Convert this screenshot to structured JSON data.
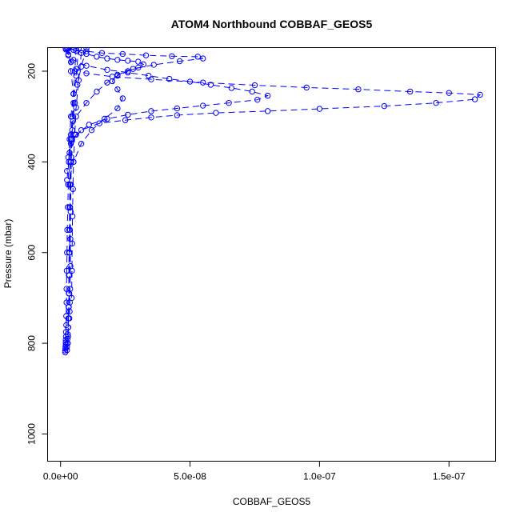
{
  "chart_data": {
    "type": "scatter",
    "title": "ATOM4 Northbound COBBAF_GEOS5",
    "xlabel": "COBBAF_GEOS5",
    "ylabel": "Pressure (mbar)",
    "xlim": [
      -5e-09,
      1.68e-07
    ],
    "ylim": [
      1060,
      148
    ],
    "y_reversed": true,
    "x_ticks": [
      0,
      5e-08,
      1e-07,
      1.5e-07
    ],
    "x_tick_labels": [
      "0.0e+00",
      "5.0e-08",
      "1.0e-07",
      "1.5e-07"
    ],
    "y_ticks": [
      200,
      400,
      600,
      800,
      1000
    ],
    "y_tick_labels": [
      "200",
      "400",
      "600",
      "800",
      "1000"
    ],
    "marker": "open-circle",
    "line": "dashed",
    "color": "#0000ff",
    "series": [
      {
        "x": [
          2e-09,
          3e-09,
          4e-09,
          6e-09,
          1e-08,
          2e-08,
          3.5e-08,
          5.5e-08,
          7.5e-08,
          9.5e-08,
          1.15e-07,
          1.35e-07,
          1.5e-07,
          1.62e-07,
          1.6e-07,
          1.45e-07,
          1.25e-07,
          1e-07,
          8e-08,
          6e-08,
          4.5e-08,
          3.5e-08,
          2.5e-08,
          1.5e-08,
          8e-09,
          4e-09,
          2.5e-09
        ],
        "y": [
          150,
          165,
          180,
          195,
          205,
          212,
          218,
          225,
          231,
          236,
          240,
          245,
          248,
          252,
          262,
          270,
          277,
          283,
          288,
          292,
          297,
          302,
          308,
          315,
          330,
          360,
          420
        ]
      },
      {
        "x": [
          2e-09,
          3e-09,
          5e-09,
          1e-08,
          1.8e-08,
          2.6e-08,
          3.4e-08,
          4.2e-08,
          5e-08,
          5.8e-08,
          6.6e-08,
          7.4e-08,
          8e-08,
          7.6e-08,
          6.5e-08,
          5.5e-08,
          4.5e-08,
          3.5e-08,
          2.6e-08,
          1.8e-08,
          1.1e-08,
          6e-09,
          3.5e-09,
          2.5e-09
        ],
        "y": [
          152,
          163,
          175,
          188,
          197,
          203,
          210,
          217,
          223,
          230,
          237,
          245,
          254,
          263,
          270,
          276,
          282,
          288,
          296,
          305,
          318,
          340,
          380,
          440
        ]
      },
      {
        "x": [
          2.5e-09,
          5e-09,
          1e-08,
          1.6e-08,
          2.4e-08,
          3.3e-08,
          4.3e-08,
          5.3e-08,
          5.5e-08,
          4.6e-08,
          3.6e-08,
          2.8e-08,
          2.2e-08,
          2e-08,
          2.2e-08,
          2.4e-08,
          2.2e-08,
          1.7e-08,
          1.2e-08,
          8e-09,
          5e-09,
          3e-09
        ],
        "y": [
          150,
          153,
          156,
          160,
          162,
          165,
          167,
          168,
          172,
          178,
          186,
          195,
          208,
          222,
          240,
          260,
          282,
          305,
          330,
          360,
          400,
          450
        ]
      },
      {
        "x": [
          3e-09,
          6e-09,
          1e-08,
          1.4e-08,
          1.8e-08,
          2.2e-08,
          2.6e-08,
          3e-08,
          3.2e-08,
          3e-08,
          2.6e-08,
          2.2e-08,
          1.8e-08,
          1.4e-08,
          1e-08,
          6e-09,
          4e-09,
          3e-09
        ],
        "y": [
          148,
          155,
          162,
          168,
          172,
          175,
          177,
          179,
          185,
          192,
          200,
          210,
          225,
          245,
          270,
          300,
          340,
          390
        ]
      },
      {
        "x": [
          3e-09,
          4e-09,
          5e-09,
          4e-09,
          3.5e-09,
          3.2e-09,
          3e-09,
          2.8e-09,
          2.6e-09,
          2.5e-09,
          2.4e-09,
          2.3e-09,
          2.3e-09,
          2.2e-09,
          2.2e-09,
          2.1e-09,
          2.1e-09,
          2e-09,
          2e-09,
          2e-09,
          1.9e-09,
          1.9e-09,
          1.8e-09,
          1.8e-09
        ],
        "y": [
          150,
          200,
          250,
          300,
          350,
          400,
          450,
          500,
          550,
          600,
          640,
          680,
          710,
          740,
          760,
          775,
          785,
          792,
          798,
          803,
          808,
          812,
          816,
          820
        ]
      },
      {
        "x": [
          6e-09,
          5.5e-09,
          5e-09,
          4.5e-09,
          4e-09,
          3.8e-09,
          3.6e-09,
          3.5e-09,
          3.4e-09,
          3.3e-09,
          3.2e-09,
          3.2e-09,
          3.1e-09,
          3e-09,
          2.9e-09,
          2.8e-09,
          2.7e-09,
          2.6e-09,
          2.5e-09,
          2.5e-09
        ],
        "y": [
          150,
          200,
          250,
          300,
          350,
          400,
          450,
          500,
          550,
          600,
          650,
          690,
          720,
          745,
          765,
          780,
          790,
          800,
          808,
          815
        ]
      },
      {
        "x": [
          1e-08,
          8e-09,
          6.5e-09,
          5.5e-09,
          4.8e-09,
          4.3e-09,
          4e-09,
          3.8e-09,
          3.7e-09,
          3.6e-09,
          3.5e-09,
          3.4e-09,
          3.3e-09,
          3.2e-09,
          3.1e-09,
          3e-09,
          2.9e-09,
          2.8e-09
        ],
        "y": [
          150,
          190,
          230,
          270,
          310,
          350,
          400,
          450,
          500,
          550,
          600,
          650,
          690,
          720,
          745,
          765,
          785,
          800
        ]
      },
      {
        "x": [
          7e-09,
          6e-09,
          5e-09,
          4.5e-09,
          4.2e-09,
          4e-09,
          3.9e-09,
          3.8e-09,
          3.8e-09,
          3.7e-09,
          3.6e-09,
          3.5e-09,
          3.4e-09
        ],
        "y": [
          150,
          210,
          270,
          330,
          390,
          450,
          510,
          570,
          630,
          680,
          710,
          730,
          745
        ]
      },
      {
        "x": [
          8e-09,
          7e-09,
          6e-09,
          5.5e-09,
          5e-09,
          4.8e-09,
          4.6e-09,
          4.5e-09,
          4.4e-09,
          4.3e-09
        ],
        "y": [
          160,
          220,
          280,
          340,
          400,
          460,
          520,
          580,
          640,
          700
        ]
      }
    ]
  }
}
